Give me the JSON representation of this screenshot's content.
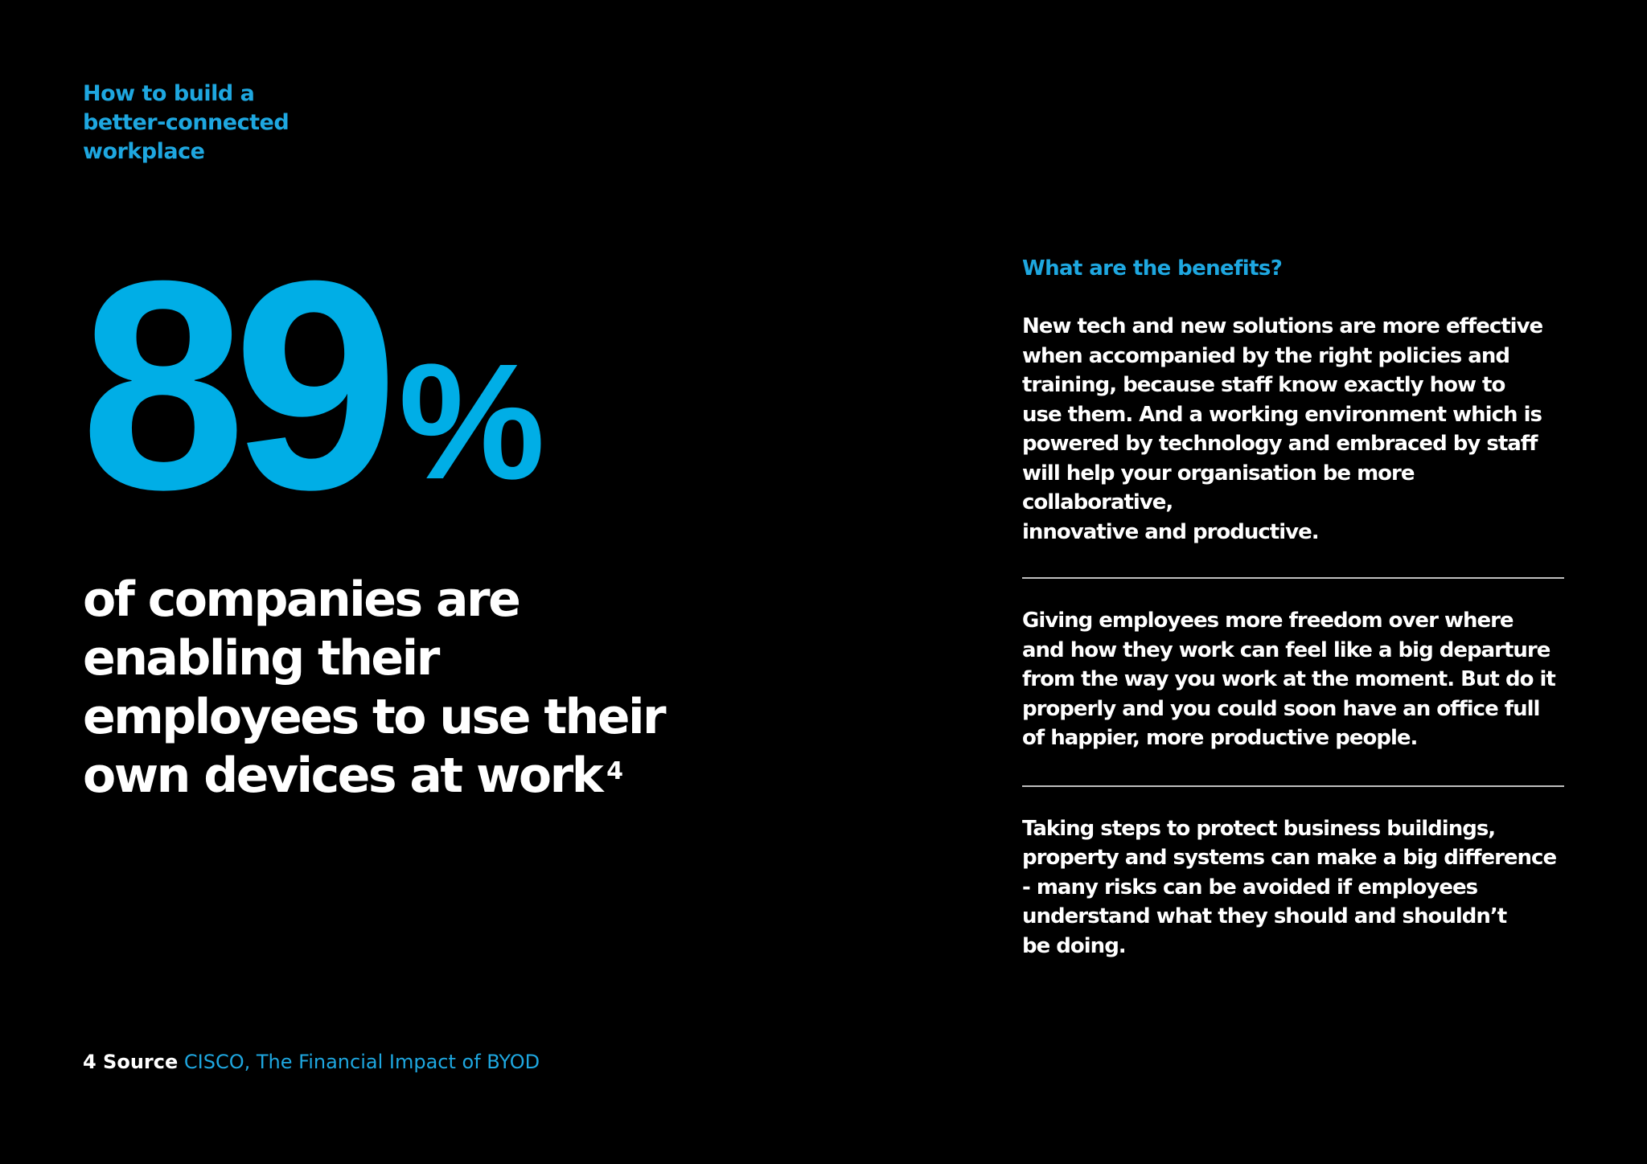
{
  "header": {
    "kicker": "How to build a\nbetter-connected\nworkplace"
  },
  "stat": {
    "number": "89",
    "percent_sign": "%",
    "caption": "of companies are enabling their employees to use their own devices at work",
    "footnote_ref": "4"
  },
  "benefits": {
    "heading": "What are the benefits?",
    "paragraphs": [
      "New tech and new solutions are more effective\nwhen accompanied by the right policies and\ntraining, because staff know exactly how to\nuse them. And a working environment which is\npowered by technology and embraced by staff\nwill help your organisation be more collaborative,\ninnovative and productive.",
      "Giving employees more freedom over where\nand how they work can feel like a big departure\nfrom the way you work at the moment. But do it\nproperly and you could soon have an office full\nof happier, more productive people.",
      "Taking steps to protect business buildings,\nproperty and systems can make a big difference\n- many risks can be avoided if employees\nunderstand what they should and shouldn’t\nbe doing."
    ]
  },
  "footnote": {
    "label": "4 Source",
    "text": "CISCO, The Financial Impact of BYOD"
  },
  "colors": {
    "background": "#000000",
    "accent": "#00aee6",
    "text": "#ffffff"
  }
}
